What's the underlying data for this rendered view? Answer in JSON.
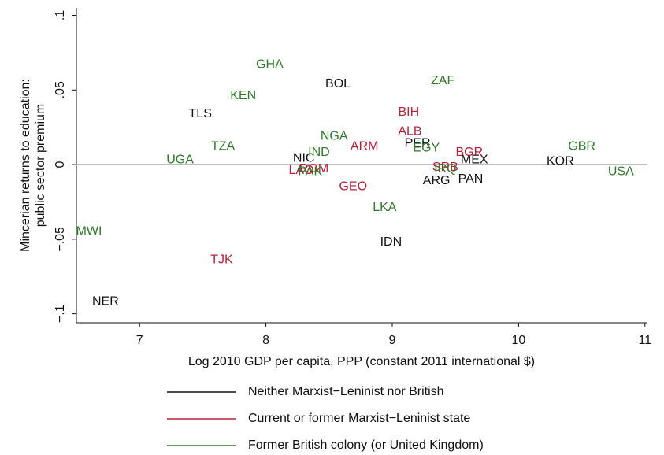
{
  "chart_data": {
    "type": "scatter",
    "x_label": "Log 2010 GDP per capita, PPP (constant 2011 international $)",
    "y_label": [
      "Mincerian returns to education:",
      "public sector premium"
    ],
    "xlim": [
      6.5,
      11.02
    ],
    "ylim": [
      -0.106,
      0.105
    ],
    "xticks": [
      7,
      8,
      9,
      10,
      11
    ],
    "yticks": [
      {
        "value": -0.1,
        "label": "−.1"
      },
      {
        "value": -0.05,
        "label": "−.05"
      },
      0,
      {
        "value": 0.05,
        "label": ".05"
      },
      {
        "value": 0.1,
        "label": ".1"
      }
    ],
    "reference_line": 0,
    "series": [
      {
        "name": "Neither Marxist−Leninist nor British",
        "color": "#111111",
        "labels": [
          "BOL",
          "TLS",
          "PER",
          "NIC",
          "MEX",
          "KOR",
          "ARG",
          "PAN",
          "IDN",
          "NER"
        ],
        "x": [
          8.57,
          7.48,
          9.2,
          8.3,
          9.65,
          10.33,
          9.35,
          9.62,
          8.99,
          6.73
        ],
        "values": [
          0.054,
          0.034,
          0.014,
          0.004,
          0.003,
          0.002,
          -0.011,
          -0.01,
          -0.052,
          -0.092
        ]
      },
      {
        "name": "Current or former Marxist−Leninist state",
        "color": "#b5213a",
        "labels": [
          "BIH",
          "ALB",
          "ARM",
          "BGR",
          "ROM",
          "LAO",
          "GEO",
          "SRB",
          "TJK"
        ],
        "x": [
          9.13,
          9.14,
          8.78,
          9.61,
          8.38,
          8.28,
          8.69,
          9.42,
          7.65
        ],
        "values": [
          0.035,
          0.022,
          0.012,
          0.008,
          -0.003,
          -0.004,
          -0.015,
          -0.002,
          -0.064
        ]
      },
      {
        "name": "Former British colony (or United Kingdom)",
        "color": "#2f7a2a",
        "labels": [
          "GHA",
          "KEN",
          "ZAF",
          "NGA",
          "TZA",
          "IND",
          "EGY",
          "UGA",
          "GBR",
          "USA",
          "PAK",
          "IRQ",
          "LKA",
          "MWI"
        ],
        "x": [
          8.03,
          7.82,
          9.4,
          8.54,
          7.66,
          8.42,
          9.27,
          7.32,
          10.5,
          10.81,
          8.35,
          9.42,
          8.94,
          6.6
        ],
        "values": [
          0.067,
          0.046,
          0.056,
          0.019,
          0.012,
          0.008,
          0.011,
          0.003,
          0.012,
          -0.005,
          -0.005,
          -0.003,
          -0.029,
          -0.045
        ]
      }
    ]
  }
}
